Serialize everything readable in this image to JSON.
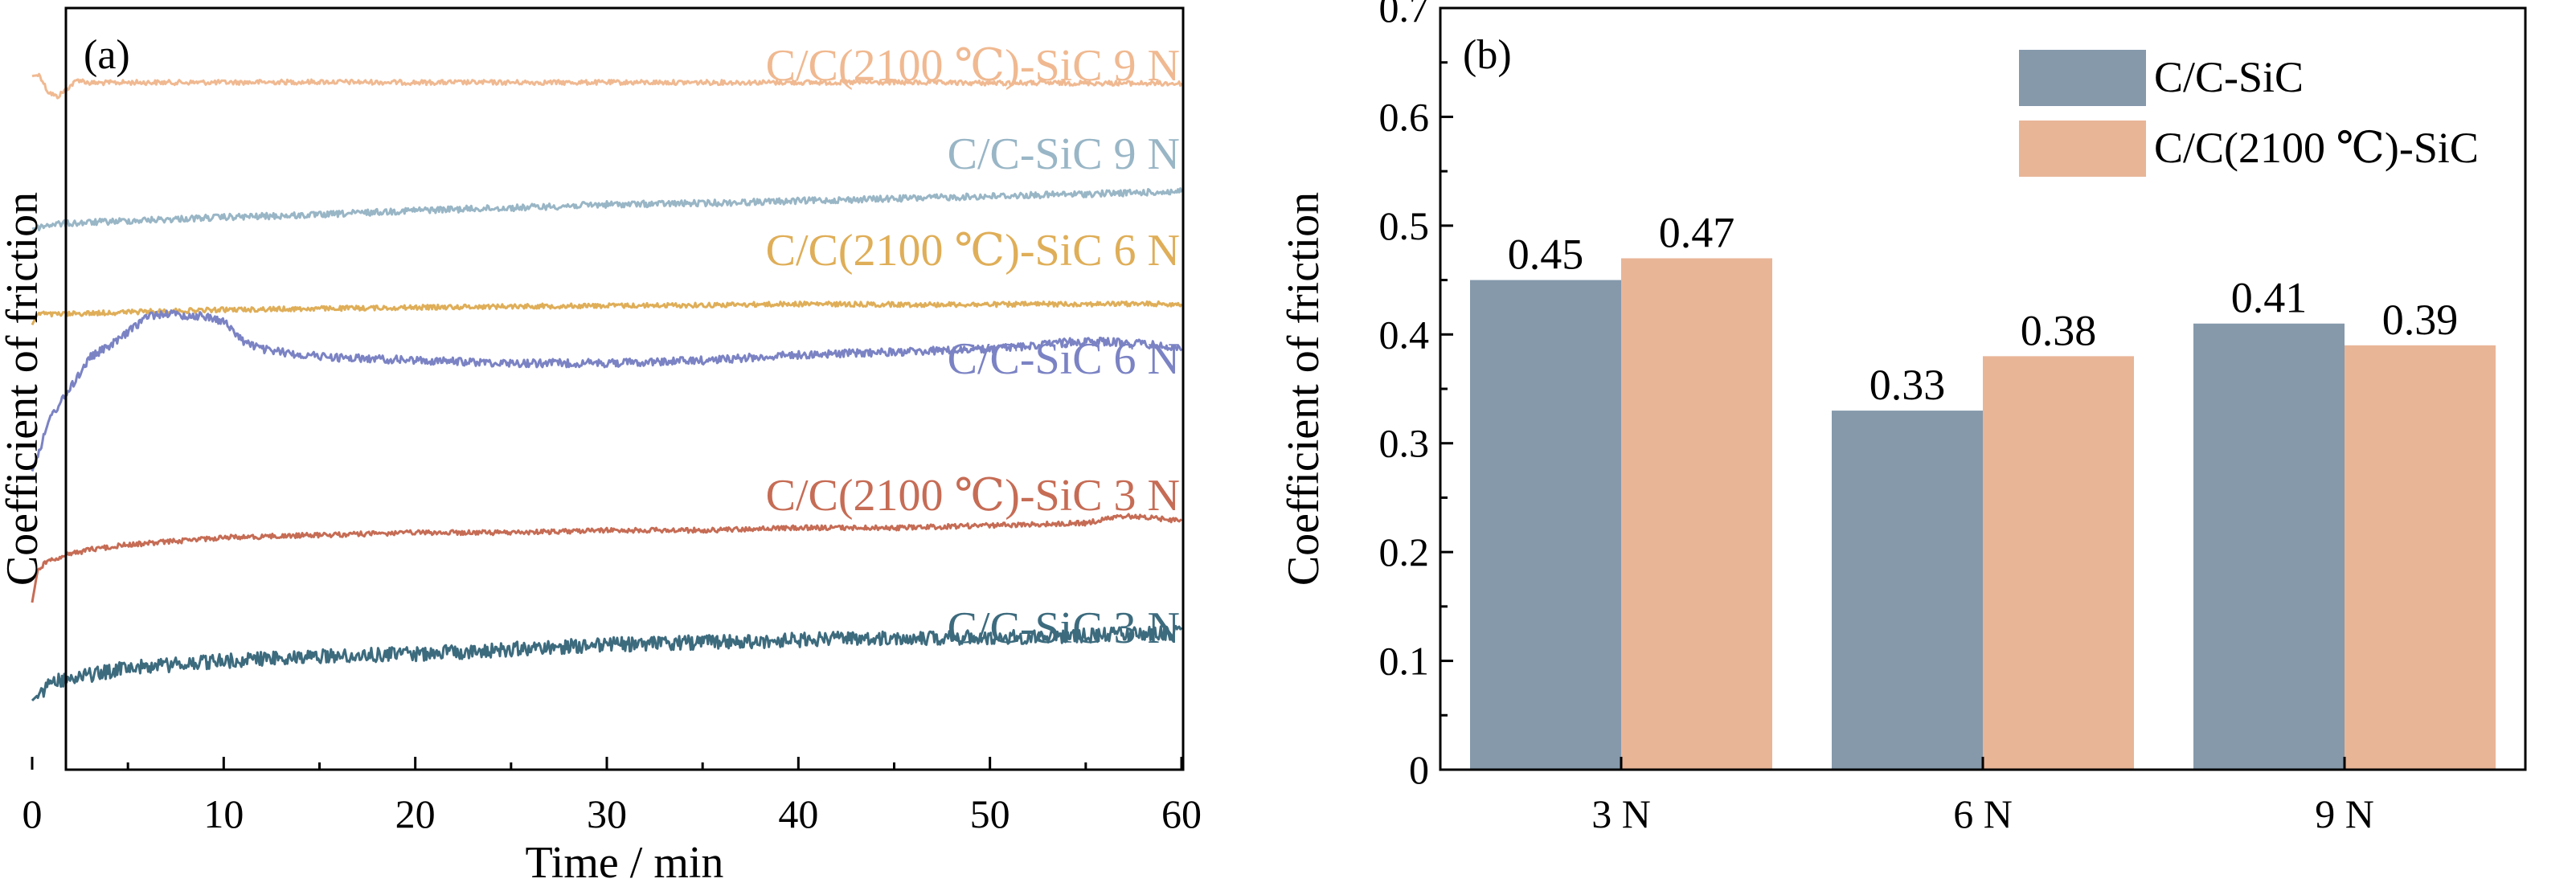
{
  "chart_data": [
    {
      "panel": "(a)",
      "type": "line",
      "xlabel": "Time / min",
      "ylabel": "Coefficient of friction",
      "xlim": [
        0,
        60
      ],
      "xticks": [
        "0",
        "10",
        "20",
        "30",
        "40",
        "50",
        "60"
      ],
      "y_tick_labels": false,
      "series": [
        {
          "name": "C/C(2100 ℃)-SiC 9 N",
          "color": "#f0b991",
          "points": [
            [
              0,
              0.83
            ],
            [
              0.4,
              0.84
            ],
            [
              0.8,
              0.7
            ],
            [
              1.3,
              0.65
            ],
            [
              1.8,
              0.72
            ],
            [
              2.4,
              0.8
            ],
            [
              3,
              0.77
            ],
            [
              5,
              0.775
            ],
            [
              10,
              0.775
            ],
            [
              15,
              0.78
            ],
            [
              20,
              0.775
            ],
            [
              25,
              0.775
            ],
            [
              30,
              0.775
            ],
            [
              35,
              0.775
            ],
            [
              40,
              0.775
            ],
            [
              45,
              0.775
            ],
            [
              50,
              0.77
            ],
            [
              55,
              0.77
            ],
            [
              60,
              0.765
            ]
          ]
        },
        {
          "name": "C/C-SiC 9 N",
          "color": "#99b6c6",
          "points": [
            [
              0,
              0.38
            ],
            [
              1,
              0.42
            ],
            [
              5,
              0.45
            ],
            [
              10,
              0.48
            ],
            [
              15,
              0.5
            ],
            [
              20,
              0.54
            ],
            [
              25,
              0.56
            ],
            [
              30,
              0.59
            ],
            [
              35,
              0.6
            ],
            [
              40,
              0.62
            ],
            [
              45,
              0.64
            ],
            [
              50,
              0.66
            ],
            [
              55,
              0.68
            ],
            [
              60,
              0.7
            ]
          ]
        },
        {
          "name": "C/C(2100 ℃)-SiC 6 N",
          "color": "#dfae58",
          "points": [
            [
              0,
              0.28
            ],
            [
              0.3,
              0.38
            ],
            [
              1,
              0.37
            ],
            [
              5,
              0.39
            ],
            [
              10,
              0.41
            ],
            [
              15,
              0.42
            ],
            [
              20,
              0.43
            ],
            [
              25,
              0.44
            ],
            [
              30,
              0.445
            ],
            [
              35,
              0.45
            ],
            [
              40,
              0.46
            ],
            [
              45,
              0.455
            ],
            [
              50,
              0.455
            ],
            [
              55,
              0.46
            ],
            [
              60,
              0.46
            ]
          ]
        },
        {
          "name": "C/C-SiC 6 N",
          "color": "#7b83c4",
          "points": [
            [
              0,
              0.3
            ],
            [
              1,
              0.5
            ],
            [
              2,
              0.6
            ],
            [
              3,
              0.71
            ],
            [
              4,
              0.75
            ],
            [
              5,
              0.8
            ],
            [
              6,
              0.86
            ],
            [
              7,
              0.87
            ],
            [
              8,
              0.86
            ],
            [
              9,
              0.86
            ],
            [
              10,
              0.84
            ],
            [
              11,
              0.77
            ],
            [
              12,
              0.74
            ],
            [
              14,
              0.72
            ],
            [
              16,
              0.71
            ],
            [
              20,
              0.7
            ],
            [
              25,
              0.69
            ],
            [
              30,
              0.69
            ],
            [
              35,
              0.7
            ],
            [
              40,
              0.72
            ],
            [
              45,
              0.73
            ],
            [
              50,
              0.74
            ],
            [
              55,
              0.77
            ],
            [
              58,
              0.76
            ],
            [
              60,
              0.74
            ]
          ]
        },
        {
          "name": "C/C(2100 ℃)-SiC 3 N",
          "color": "#c66c55",
          "points": [
            [
              0,
              0.2
            ],
            [
              0.3,
              0.34
            ],
            [
              1,
              0.38
            ],
            [
              3,
              0.42
            ],
            [
              5,
              0.44
            ],
            [
              10,
              0.47
            ],
            [
              15,
              0.48
            ],
            [
              20,
              0.49
            ],
            [
              25,
              0.49
            ],
            [
              30,
              0.5
            ],
            [
              35,
              0.5
            ],
            [
              40,
              0.51
            ],
            [
              45,
              0.51
            ],
            [
              50,
              0.52
            ],
            [
              55,
              0.53
            ],
            [
              57,
              0.56
            ],
            [
              60,
              0.54
            ]
          ]
        },
        {
          "name": "C/C-SiC 3 N",
          "color": "#3d6b7e",
          "points": [
            [
              0,
              0.2
            ],
            [
              1,
              0.28
            ],
            [
              5,
              0.34
            ],
            [
              10,
              0.37
            ],
            [
              15,
              0.39
            ],
            [
              20,
              0.4
            ],
            [
              25,
              0.42
            ],
            [
              30,
              0.44
            ],
            [
              35,
              0.45
            ],
            [
              40,
              0.46
            ],
            [
              45,
              0.47
            ],
            [
              50,
              0.47
            ],
            [
              55,
              0.48
            ],
            [
              60,
              0.49
            ]
          ]
        }
      ]
    },
    {
      "panel": "(b)",
      "type": "bar",
      "ylabel": "Coefficient of friction",
      "ylim": [
        0,
        0.7
      ],
      "yticks": [
        "0",
        "0.1",
        "0.2",
        "0.3",
        "0.4",
        "0.5",
        "0.6",
        "0.7"
      ],
      "categories": [
        "3 N",
        "6 N",
        "9 N"
      ],
      "legend_position": "top-right",
      "series": [
        {
          "name": "C/C-SiC",
          "color": "#8599ab",
          "values": [
            0.45,
            0.33,
            0.41
          ],
          "labels": [
            "0.45",
            "0.33",
            "0.41"
          ]
        },
        {
          "name": "C/C(2100 ℃)-SiC",
          "color": "#e8b597",
          "values": [
            0.47,
            0.38,
            0.39
          ],
          "labels": [
            "0.47",
            "0.38",
            "0.39"
          ]
        }
      ]
    }
  ]
}
